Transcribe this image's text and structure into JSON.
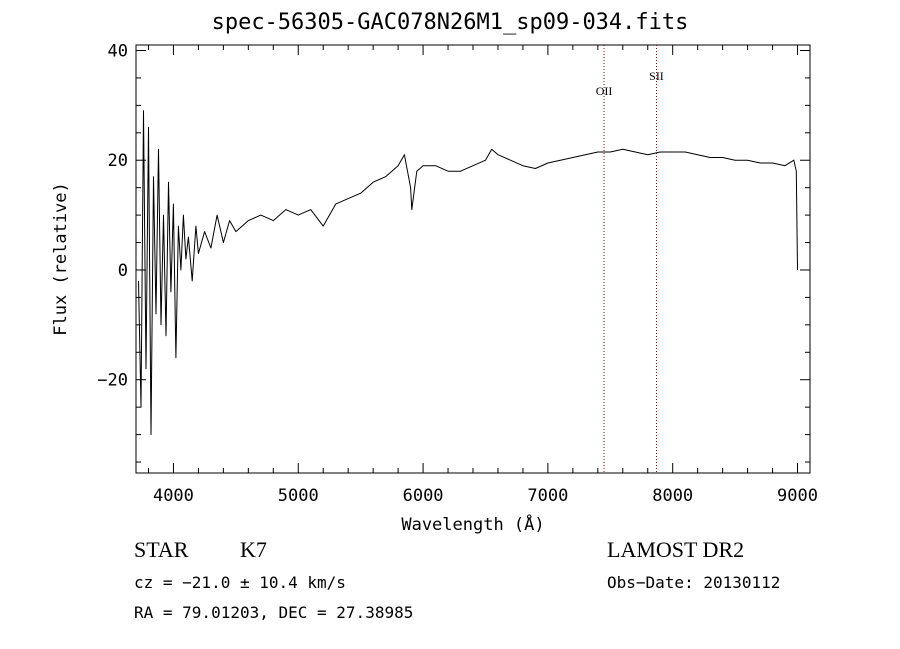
{
  "chart_data": {
    "type": "line",
    "title": "spec-56305-GAC078N26M1_sp09-034.fits",
    "xlabel": "Wavelength (Å)",
    "ylabel": "Flux (relative)",
    "xlim": [
      3700,
      9100
    ],
    "ylim": [
      -37,
      41
    ],
    "xticks": [
      4000,
      5000,
      6000,
      7000,
      8000,
      9000
    ],
    "yticks": [
      -20,
      0,
      20,
      40
    ],
    "grid": false,
    "series": [
      {
        "color": "#000000",
        "points": [
          [
            3720,
            -2
          ],
          [
            3740,
            -25
          ],
          [
            3760,
            29
          ],
          [
            3780,
            -18
          ],
          [
            3800,
            26
          ],
          [
            3820,
            -30
          ],
          [
            3840,
            17
          ],
          [
            3860,
            -8
          ],
          [
            3880,
            22
          ],
          [
            3900,
            -10
          ],
          [
            3920,
            10
          ],
          [
            3940,
            -12
          ],
          [
            3960,
            16
          ],
          [
            3980,
            -4
          ],
          [
            4000,
            12
          ],
          [
            4020,
            -16
          ],
          [
            4040,
            8
          ],
          [
            4060,
            0
          ],
          [
            4080,
            10
          ],
          [
            4100,
            2
          ],
          [
            4120,
            6
          ],
          [
            4150,
            -2
          ],
          [
            4180,
            8
          ],
          [
            4200,
            3
          ],
          [
            4250,
            7
          ],
          [
            4300,
            4
          ],
          [
            4350,
            10
          ],
          [
            4400,
            5
          ],
          [
            4450,
            9
          ],
          [
            4500,
            7
          ],
          [
            4600,
            9
          ],
          [
            4700,
            10
          ],
          [
            4800,
            9
          ],
          [
            4900,
            11
          ],
          [
            5000,
            10
          ],
          [
            5100,
            11
          ],
          [
            5200,
            8
          ],
          [
            5300,
            12
          ],
          [
            5400,
            13
          ],
          [
            5500,
            14
          ],
          [
            5600,
            16
          ],
          [
            5700,
            17
          ],
          [
            5800,
            19
          ],
          [
            5850,
            21
          ],
          [
            5900,
            15
          ],
          [
            5910,
            11
          ],
          [
            5950,
            18
          ],
          [
            6000,
            19
          ],
          [
            6100,
            19
          ],
          [
            6200,
            18
          ],
          [
            6300,
            18
          ],
          [
            6400,
            19
          ],
          [
            6500,
            20
          ],
          [
            6550,
            22
          ],
          [
            6600,
            21
          ],
          [
            6700,
            20
          ],
          [
            6800,
            19
          ],
          [
            6900,
            18.5
          ],
          [
            7000,
            19.5
          ],
          [
            7100,
            20
          ],
          [
            7200,
            20.5
          ],
          [
            7300,
            21
          ],
          [
            7400,
            21.5
          ],
          [
            7500,
            21.5
          ],
          [
            7600,
            22
          ],
          [
            7700,
            21.5
          ],
          [
            7800,
            21
          ],
          [
            7900,
            21.5
          ],
          [
            8000,
            21.5
          ],
          [
            8100,
            21.5
          ],
          [
            8200,
            21
          ],
          [
            8300,
            20.5
          ],
          [
            8400,
            20.5
          ],
          [
            8500,
            20
          ],
          [
            8600,
            20
          ],
          [
            8700,
            19.5
          ],
          [
            8800,
            19.5
          ],
          [
            8900,
            19
          ],
          [
            8970,
            20
          ],
          [
            8990,
            18
          ],
          [
            9000,
            0
          ]
        ]
      }
    ],
    "lines": [
      {
        "label": "OII",
        "x": 7450
      },
      {
        "label": "SII",
        "x": 7870
      }
    ],
    "line_color": "#990000"
  },
  "footer": {
    "class_label": "STAR",
    "subclass": "K7",
    "survey": "LAMOST DR2",
    "cz": "cz = −21.0 ± 10.4 km/s",
    "obs_date": "Obs−Date: 20130112",
    "coords": "RA =  79.01203, DEC =  27.38985"
  }
}
